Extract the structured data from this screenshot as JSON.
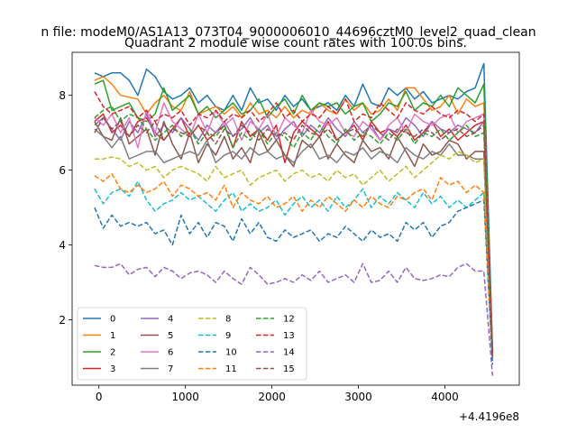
{
  "chart_data": {
    "type": "line",
    "suptitle": "n file: modeM0/AS1A13_073T04_9000006010_44696cztM0_level2_quad_clean",
    "title": "Quadrant 2 module wise count rates with 100.0s bins.",
    "xlabel": "",
    "ylabel": "",
    "x_offset_label": "+4.4196e8",
    "xlim": [
      -310,
      4860
    ],
    "ylim": [
      0.25,
      9.15
    ],
    "xticks": [
      0,
      1000,
      2000,
      3000,
      4000
    ],
    "yticks": [
      2,
      4,
      6,
      8
    ],
    "grid": false,
    "legend_position": "lower-left",
    "legend_columns": 4,
    "x": [
      -50,
      50,
      150,
      250,
      350,
      450,
      550,
      650,
      750,
      850,
      950,
      1050,
      1150,
      1250,
      1350,
      1450,
      1550,
      1650,
      1750,
      1850,
      1950,
      2050,
      2150,
      2250,
      2350,
      2450,
      2550,
      2650,
      2750,
      2850,
      2950,
      3050,
      3150,
      3250,
      3350,
      3450,
      3550,
      3650,
      3750,
      3850,
      3950,
      4050,
      4150,
      4250,
      4350,
      4450,
      4550
    ],
    "series": [
      {
        "name": "0",
        "color": "#1f77b4",
        "dash": "solid",
        "values": [
          8.6,
          8.5,
          8.6,
          8.6,
          8.4,
          8.0,
          8.7,
          8.5,
          8.1,
          7.9,
          8.0,
          8.2,
          7.8,
          8.0,
          7.7,
          7.6,
          8.0,
          7.6,
          8.2,
          7.8,
          7.9,
          7.6,
          8.0,
          7.7,
          7.9,
          7.6,
          7.7,
          7.8,
          7.6,
          8.0,
          7.7,
          8.3,
          7.8,
          7.7,
          8.2,
          8.0,
          8.2,
          7.9,
          8.1,
          7.8,
          7.9,
          8.0,
          7.9,
          8.1,
          8.2,
          8.85,
          1.2
        ]
      },
      {
        "name": "1",
        "color": "#ff7f0e",
        "dash": "solid",
        "values": [
          8.4,
          8.5,
          8.3,
          8.0,
          7.95,
          7.9,
          7.5,
          7.8,
          8.0,
          7.7,
          7.6,
          8.1,
          7.5,
          7.6,
          7.7,
          7.5,
          7.7,
          7.4,
          7.8,
          7.5,
          7.6,
          7.4,
          7.7,
          7.4,
          7.6,
          7.5,
          7.8,
          7.6,
          7.5,
          7.9,
          7.6,
          7.8,
          7.5,
          7.6,
          7.9,
          7.6,
          8.2,
          8.2,
          7.9,
          7.6,
          7.7,
          8.0,
          7.5,
          7.9,
          7.7,
          7.8,
          1.0
        ]
      },
      {
        "name": "2",
        "color": "#2ca02c",
        "dash": "solid",
        "values": [
          8.3,
          8.4,
          7.6,
          7.7,
          7.8,
          7.4,
          7.3,
          7.5,
          8.2,
          7.6,
          7.8,
          8.0,
          7.5,
          7.7,
          7.4,
          7.6,
          7.8,
          7.5,
          7.6,
          7.9,
          7.4,
          7.7,
          7.9,
          7.5,
          8.0,
          7.6,
          7.8,
          7.7,
          7.8,
          7.5,
          7.7,
          7.8,
          7.3,
          7.5,
          7.8,
          7.7,
          8.1,
          7.6,
          7.8,
          7.7,
          8.0,
          7.7,
          8.2,
          8.0,
          7.8,
          8.3,
          1.1
        ]
      },
      {
        "name": "3",
        "color": "#d62728",
        "dash": "solid",
        "values": [
          7.3,
          7.5,
          7.0,
          7.2,
          6.9,
          7.3,
          7.4,
          7.0,
          6.8,
          7.1,
          7.4,
          6.9,
          7.2,
          6.8,
          7.0,
          7.2,
          6.6,
          7.3,
          6.9,
          7.1,
          6.8,
          7.2,
          6.2,
          7.0,
          7.3,
          7.1,
          6.9,
          7.3,
          6.8,
          7.0,
          7.2,
          6.8,
          7.3,
          7.0,
          7.1,
          6.9,
          7.2,
          6.8,
          7.0,
          7.3,
          6.9,
          7.1,
          6.8,
          7.0,
          7.2,
          7.3,
          1.0
        ]
      },
      {
        "name": "4",
        "color": "#9467bd",
        "dash": "solid",
        "values": [
          7.2,
          7.4,
          7.1,
          6.8,
          7.3,
          7.0,
          7.5,
          6.9,
          7.2,
          7.0,
          7.4,
          7.1,
          6.8,
          7.2,
          7.0,
          7.3,
          6.9,
          7.1,
          7.4,
          7.0,
          7.2,
          6.8,
          7.1,
          7.3,
          6.9,
          7.2,
          7.0,
          7.4,
          7.1,
          6.9,
          7.3,
          7.0,
          7.2,
          6.8,
          7.1,
          7.0,
          7.4,
          7.2,
          6.9,
          7.3,
          7.1,
          7.0,
          7.2,
          7.1,
          7.0,
          7.3,
          1.0
        ]
      },
      {
        "name": "5",
        "color": "#8c564b",
        "dash": "solid",
        "values": [
          7.3,
          6.9,
          6.8,
          7.4,
          6.7,
          6.9,
          7.1,
          6.4,
          7.3,
          6.7,
          6.3,
          7.0,
          6.2,
          6.7,
          6.4,
          6.9,
          6.3,
          6.6,
          6.2,
          7.0,
          6.5,
          6.8,
          6.4,
          6.1,
          6.8,
          6.6,
          6.9,
          6.3,
          6.7,
          6.4,
          6.2,
          6.8,
          6.5,
          6.6,
          6.3,
          6.9,
          6.5,
          6.1,
          6.7,
          6.4,
          6.5,
          6.8,
          6.7,
          6.3,
          6.5,
          6.5,
          1.0
        ]
      },
      {
        "name": "6",
        "color": "#e377c2",
        "dash": "solid",
        "values": [
          7.4,
          7.2,
          7.5,
          7.0,
          7.4,
          6.6,
          7.6,
          7.0,
          7.8,
          7.3,
          7.1,
          6.9,
          7.5,
          7.0,
          7.6,
          7.2,
          7.4,
          6.8,
          7.3,
          7.1,
          7.5,
          6.9,
          7.4,
          7.2,
          7.0,
          7.6,
          7.3,
          7.2,
          7.4,
          7.0,
          6.9,
          7.3,
          7.1,
          6.8,
          7.2,
          7.4,
          7.0,
          7.5,
          7.3,
          7.2,
          7.4,
          7.5,
          7.0,
          7.3,
          7.4,
          7.5,
          1.0
        ]
      },
      {
        "name": "7",
        "color": "#7f7f7f",
        "dash": "solid",
        "values": [
          7.1,
          6.9,
          6.6,
          6.9,
          6.3,
          6.4,
          6.5,
          6.5,
          6.2,
          6.3,
          6.4,
          6.5,
          6.4,
          6.8,
          6.2,
          6.4,
          6.5,
          6.3,
          6.6,
          6.4,
          6.5,
          6.3,
          6.4,
          6.2,
          6.5,
          6.7,
          6.3,
          6.4,
          6.2,
          6.5,
          6.4,
          6.6,
          6.3,
          6.5,
          6.4,
          6.2,
          6.6,
          6.4,
          6.3,
          6.5,
          6.4,
          6.7,
          6.4,
          6.4,
          6.3,
          6.3,
          0.9
        ]
      },
      {
        "name": "8",
        "color": "#bcbd22",
        "dash": "dashed",
        "values": [
          6.3,
          6.3,
          6.35,
          6.3,
          6.1,
          6.2,
          6.0,
          6.1,
          5.8,
          6.0,
          6.1,
          6.0,
          5.9,
          5.7,
          6.1,
          5.8,
          5.9,
          6.0,
          5.6,
          5.8,
          5.9,
          6.0,
          5.7,
          5.9,
          6.0,
          5.8,
          5.9,
          5.7,
          6.0,
          5.8,
          5.9,
          5.6,
          5.8,
          6.0,
          5.7,
          5.9,
          6.1,
          5.8,
          6.0,
          6.2,
          6.4,
          6.3,
          6.5,
          6.4,
          6.2,
          6.3,
          1.0
        ]
      },
      {
        "name": "9",
        "color": "#17becf",
        "dash": "dashed",
        "values": [
          5.5,
          5.1,
          5.4,
          5.5,
          5.3,
          5.7,
          5.2,
          4.9,
          5.1,
          5.2,
          5.4,
          5.2,
          5.3,
          5.1,
          4.9,
          5.2,
          5.4,
          4.9,
          5.1,
          4.9,
          5.0,
          5.2,
          4.8,
          5.1,
          5.3,
          5.0,
          5.2,
          4.9,
          5.3,
          5.0,
          5.2,
          5.5,
          5.0,
          5.3,
          5.1,
          5.4,
          5.2,
          5.0,
          5.4,
          5.1,
          5.3,
          5.0,
          5.2,
          5.0,
          5.2,
          5.4,
          0.9
        ]
      },
      {
        "name": "10",
        "color": "#1f77b4",
        "dash": "dashed",
        "values": [
          5.0,
          4.45,
          4.8,
          4.5,
          4.6,
          4.5,
          4.6,
          4.3,
          4.4,
          4.0,
          4.8,
          4.3,
          4.6,
          4.2,
          4.6,
          4.5,
          4.1,
          4.7,
          4.3,
          4.6,
          4.2,
          4.1,
          4.4,
          4.2,
          4.3,
          4.4,
          4.1,
          4.3,
          4.2,
          4.5,
          4.3,
          4.1,
          4.4,
          4.2,
          4.3,
          4.1,
          4.6,
          4.4,
          4.6,
          4.2,
          4.5,
          4.6,
          4.9,
          5.0,
          5.1,
          5.2,
          0.8
        ]
      },
      {
        "name": "11",
        "color": "#ff7f0e",
        "dash": "dashed",
        "values": [
          5.85,
          5.7,
          5.9,
          5.5,
          5.4,
          5.6,
          5.4,
          5.5,
          5.7,
          5.3,
          5.6,
          5.5,
          5.3,
          5.4,
          5.2,
          5.6,
          5.0,
          5.4,
          5.2,
          5.1,
          5.3,
          5.0,
          5.1,
          5.3,
          4.9,
          5.2,
          5.0,
          5.3,
          5.1,
          4.9,
          5.2,
          5.0,
          5.3,
          5.1,
          5.0,
          5.3,
          5.2,
          5.4,
          5.5,
          5.2,
          5.8,
          5.6,
          5.7,
          5.4,
          5.6,
          5.4,
          1.0
        ]
      },
      {
        "name": "12",
        "color": "#2ca02c",
        "dash": "dashed",
        "values": [
          7.4,
          7.6,
          7.7,
          7.3,
          7.5,
          7.4,
          7.1,
          6.8,
          7.0,
          7.2,
          6.9,
          7.1,
          6.7,
          7.0,
          6.9,
          7.2,
          6.6,
          7.0,
          6.8,
          7.1,
          6.7,
          7.0,
          6.9,
          6.6,
          7.0,
          6.8,
          7.2,
          6.9,
          6.7,
          7.1,
          6.8,
          7.0,
          6.9,
          6.7,
          7.0,
          6.8,
          7.1,
          6.7,
          7.0,
          6.9,
          7.1,
          6.8,
          7.0,
          7.2,
          6.9,
          7.0,
          1.0
        ]
      },
      {
        "name": "13",
        "color": "#d62728",
        "dash": "dashed",
        "values": [
          8.1,
          7.7,
          7.5,
          7.6,
          7.7,
          7.4,
          7.6,
          7.3,
          7.5,
          7.4,
          7.6,
          7.2,
          7.5,
          7.4,
          7.6,
          7.3,
          7.5,
          7.4,
          7.6,
          7.3,
          7.5,
          7.8,
          7.4,
          7.6,
          7.3,
          7.5,
          7.4,
          7.7,
          7.5,
          7.9,
          7.3,
          7.5,
          7.4,
          7.8,
          7.6,
          7.4,
          7.8,
          7.6,
          7.5,
          7.7,
          7.5,
          7.4,
          7.6,
          7.5,
          7.3,
          7.5,
          1.1
        ]
      },
      {
        "name": "14",
        "color": "#9467bd",
        "dash": "dashed",
        "values": [
          3.45,
          3.4,
          3.4,
          3.5,
          3.2,
          3.35,
          3.4,
          3.15,
          3.4,
          3.3,
          3.1,
          3.25,
          3.3,
          3.2,
          3.0,
          3.3,
          3.1,
          2.95,
          3.4,
          3.2,
          2.95,
          3.0,
          3.1,
          3.0,
          3.2,
          3.05,
          3.3,
          3.0,
          3.1,
          3.2,
          3.0,
          3.5,
          3.0,
          3.05,
          3.3,
          3.0,
          3.4,
          3.1,
          3.05,
          3.1,
          3.2,
          3.15,
          3.4,
          3.5,
          3.3,
          3.3,
          0.5
        ]
      },
      {
        "name": "15",
        "color": "#8c564b",
        "dash": "dashed",
        "values": [
          7.0,
          7.4,
          7.1,
          7.3,
          6.9,
          7.2,
          7.0,
          7.3,
          6.8,
          7.1,
          7.0,
          6.9,
          7.2,
          7.0,
          6.7,
          7.1,
          6.9,
          7.2,
          7.0,
          6.8,
          7.1,
          6.9,
          7.0,
          6.8,
          7.2,
          7.0,
          6.9,
          7.1,
          6.8,
          7.0,
          7.1,
          6.9,
          7.2,
          7.0,
          6.8,
          7.1,
          7.0,
          6.9,
          7.1,
          7.0,
          6.8,
          7.0,
          7.1,
          6.9,
          7.0,
          7.2,
          1.0
        ]
      }
    ]
  }
}
